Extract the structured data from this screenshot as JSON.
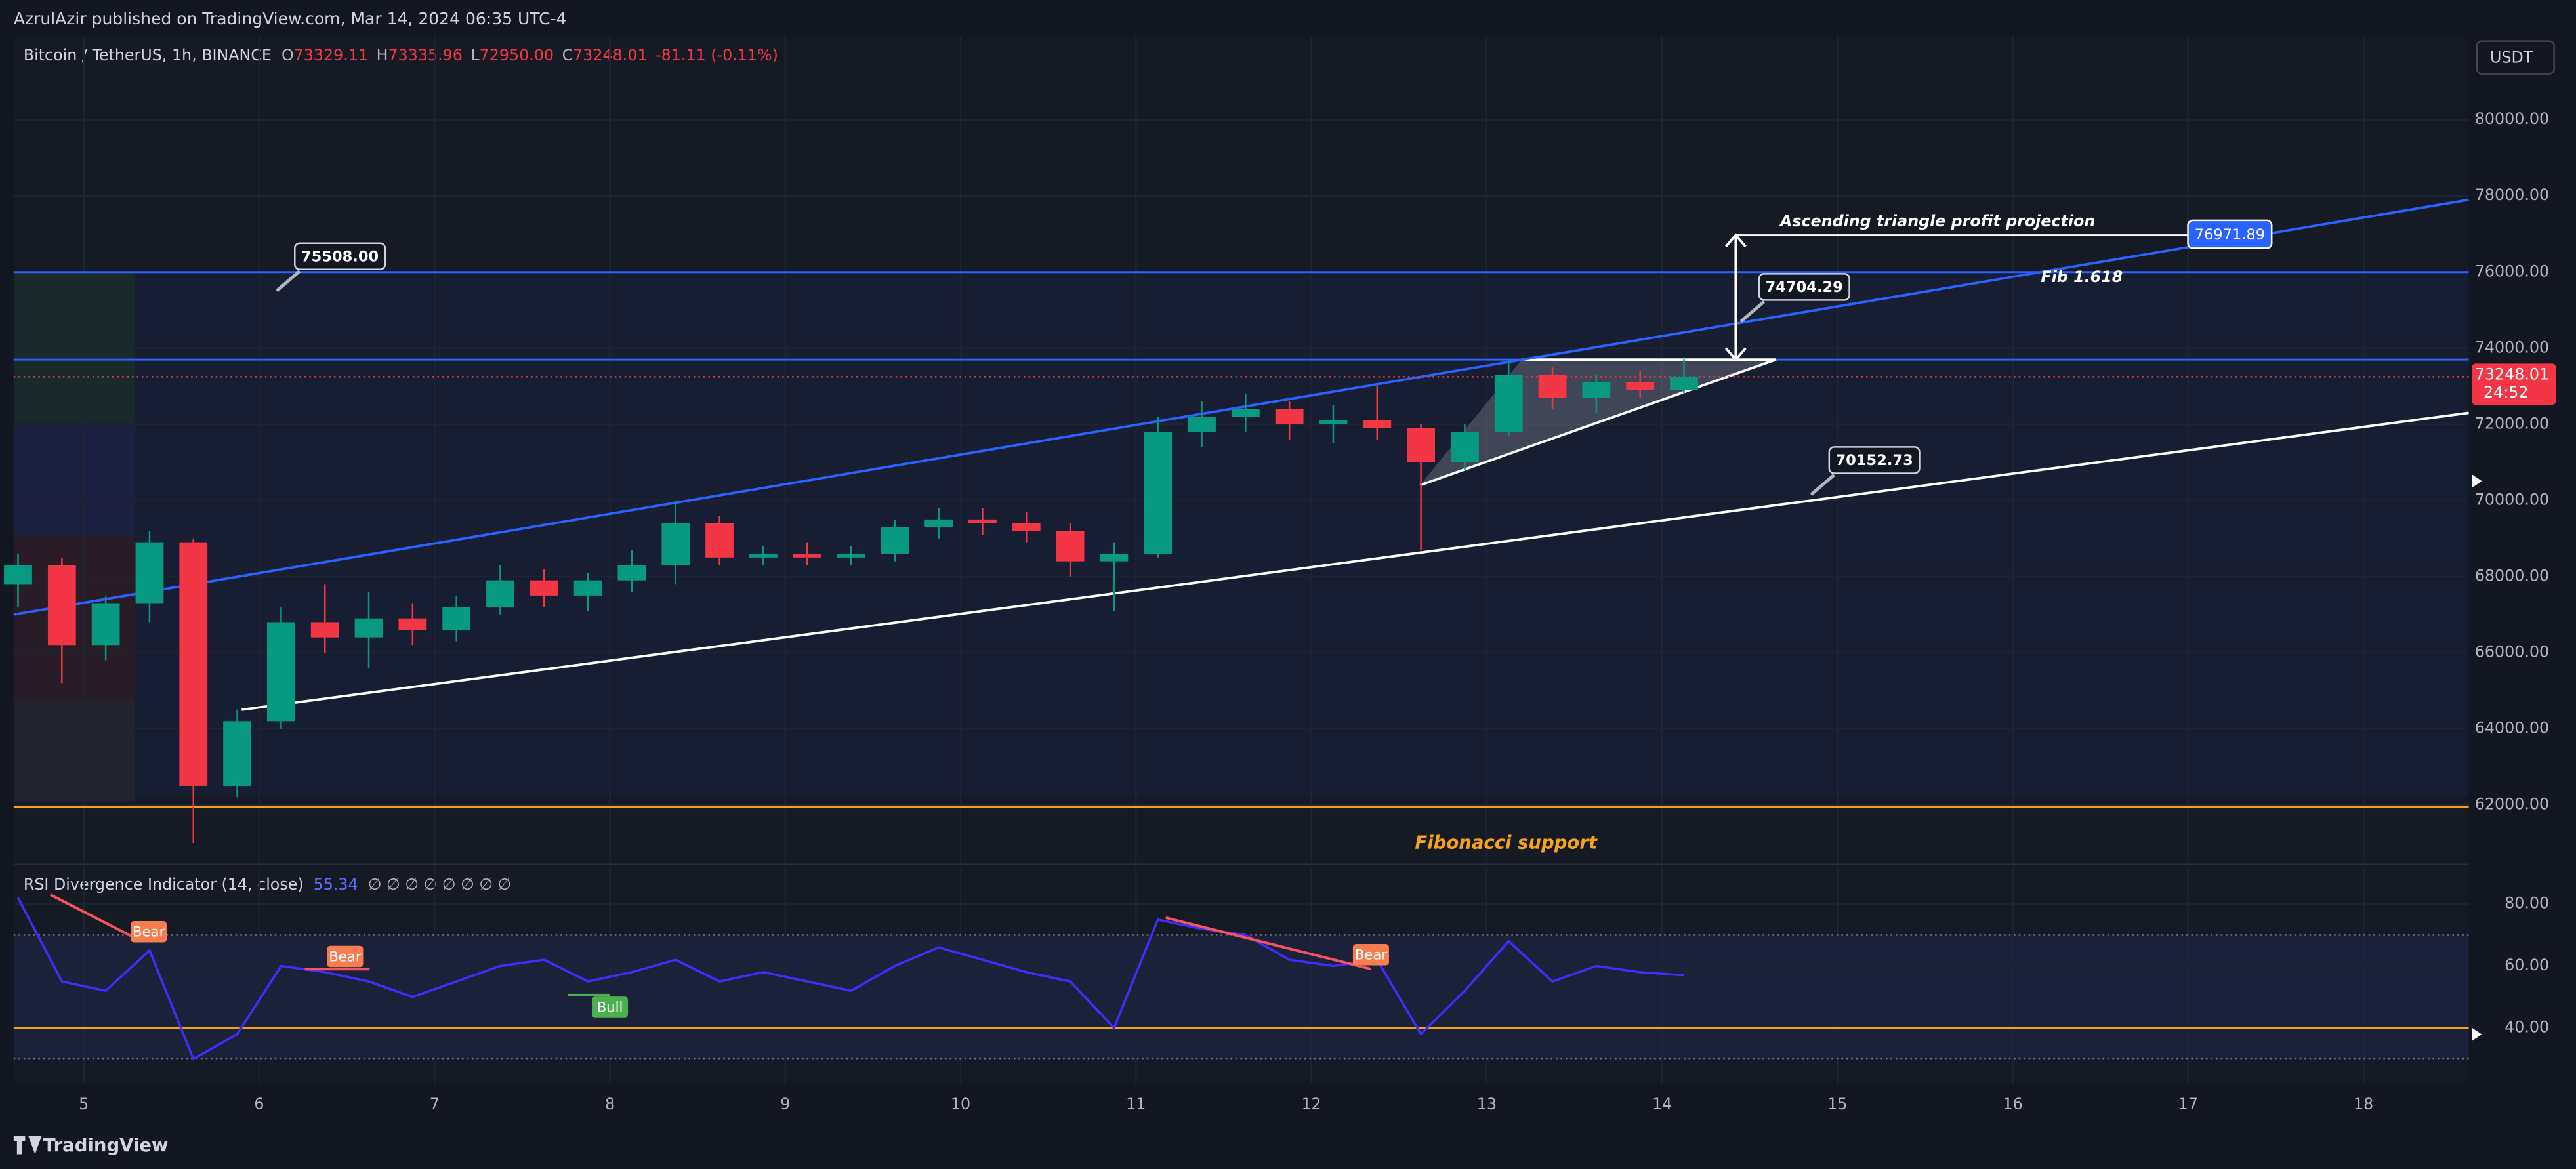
{
  "header": {
    "author_line": "AzrulAzir published on TradingView.com, Mar 14, 2024 06:35 UTC-4",
    "symbol": "Bitcoin / TetherUS, 1h, BINANCE",
    "ohlc": [
      {
        "key": "O",
        "value": "73329.11"
      },
      {
        "key": "H",
        "value": "73335.96"
      },
      {
        "key": "L",
        "value": "72950.00"
      },
      {
        "key": "C",
        "value": "73248.01"
      }
    ],
    "change": "-81.11 (-0.11%)",
    "currency": "USDT"
  },
  "footer": {
    "brand": "TradingView"
  },
  "chart_data": [
    {
      "type": "candlestick",
      "x": [
        4.625,
        4.875,
        5.125,
        5.375,
        5.625,
        5.875,
        6.125,
        6.375,
        6.625,
        6.875,
        7.125,
        7.375,
        7.625,
        7.875,
        8.125,
        8.375,
        8.625,
        8.875,
        9.125,
        9.375,
        9.625,
        9.875,
        10.125,
        10.375,
        10.625,
        10.875,
        11.125,
        11.375,
        11.625,
        11.875,
        12.125,
        12.375,
        12.625,
        12.875,
        13.125,
        13.375,
        13.625,
        13.875,
        14.125
      ],
      "open": [
        67800,
        68300,
        66200,
        67300,
        68900,
        62500,
        64200,
        66800,
        66400,
        66900,
        66600,
        67200,
        67900,
        67500,
        67900,
        68300,
        69400,
        68500,
        68600,
        68500,
        68600,
        69300,
        69500,
        69400,
        69200,
        68400,
        68600,
        71800,
        72200,
        72400,
        72000,
        72100,
        71900,
        71000,
        71800,
        73300,
        72700,
        73100,
        72900
      ],
      "high": [
        68600,
        68500,
        67500,
        69200,
        69000,
        64500,
        67200,
        67800,
        67600,
        67300,
        67500,
        68300,
        68200,
        68100,
        68700,
        70000,
        69600,
        68800,
        68900,
        68800,
        69500,
        69800,
        69800,
        69700,
        69400,
        68900,
        72200,
        72600,
        72800,
        72600,
        72500,
        73000,
        72000,
        72000,
        73700,
        73500,
        73300,
        73400,
        73700
      ],
      "low": [
        67200,
        65200,
        65800,
        66800,
        61000,
        62200,
        64000,
        66000,
        65600,
        66200,
        66300,
        67000,
        67200,
        67100,
        67600,
        67800,
        68300,
        68300,
        68300,
        68300,
        68400,
        69000,
        69100,
        68900,
        68000,
        67100,
        68500,
        71400,
        71800,
        71600,
        71500,
        71600,
        68700,
        70800,
        71700,
        72400,
        72300,
        72700,
        72800
      ],
      "close": [
        68300,
        66200,
        67300,
        68900,
        62500,
        64200,
        66800,
        66400,
        66900,
        66600,
        67200,
        67900,
        67500,
        67900,
        68300,
        69400,
        68500,
        68600,
        68500,
        68600,
        69300,
        69500,
        69400,
        69200,
        68400,
        68600,
        71800,
        72200,
        72400,
        72000,
        72100,
        71900,
        71000,
        71800,
        73300,
        72700,
        73100,
        72900,
        73248.01
      ],
      "up_color": "#089981",
      "down_color": "#f23645",
      "xlim": [
        4.6,
        18.6
      ],
      "xticks": [
        5,
        6,
        7,
        8,
        9,
        10,
        11,
        12,
        13,
        14,
        15,
        16,
        17,
        18
      ],
      "ylim": [
        60500,
        82200
      ],
      "yticks": [
        {
          "value": 62000,
          "label": "62000.00"
        },
        {
          "value": 64000,
          "label": "64000.00"
        },
        {
          "value": 66000,
          "label": "66000.00"
        },
        {
          "value": 68000,
          "label": "68000.00"
        },
        {
          "value": 70000,
          "label": "70000.00"
        },
        {
          "value": 72000,
          "label": "72000.00"
        },
        {
          "value": 74000,
          "label": "74000.00"
        },
        {
          "value": 76000,
          "label": "76000.00"
        },
        {
          "value": 78000,
          "label": "78000.00"
        },
        {
          "value": 80000,
          "label": "80000.00"
        }
      ],
      "grid": true,
      "hlines": [
        {
          "value": 76000,
          "color": "#2962ff"
        },
        {
          "value": 73700,
          "color": "#2962ff"
        },
        {
          "value": 61950,
          "color": "#f7a21b"
        }
      ],
      "trendlines": [
        {
          "color": "#2962ff",
          "points": [
            [
              4.6,
              67000
            ],
            [
              18.6,
              77900
            ]
          ]
        },
        {
          "color": "#ffffff",
          "points": [
            [
              5.9,
              64500
            ],
            [
              18.6,
              72300
            ]
          ]
        }
      ],
      "triangle": {
        "color": "#ffffff",
        "points": [
          [
            12.62,
            70400
          ],
          [
            13.2,
            73700
          ],
          [
            14.65,
            73700
          ]
        ]
      },
      "callouts": [
        {
          "value": 75508,
          "label": "75508.00",
          "x": 6.1
        },
        {
          "value": 74704.29,
          "label": "74704.29",
          "x": 14.45
        },
        {
          "value": 70152.73,
          "label": "70152.73",
          "x": 14.85
        }
      ],
      "projection": {
        "x": 14.42,
        "from": 73700,
        "to": 76971.89,
        "label": "76971.89",
        "title": "Ascending triangle profit projection",
        "color": "#2962ff"
      },
      "texts": [
        {
          "text": "Fib 1.618",
          "x": 16.16,
          "y": 75850,
          "color": "#ffffff"
        },
        {
          "text": "Fibonacci support",
          "x": 13.11,
          "y": 60990,
          "color": "#f7a21b"
        }
      ],
      "last_price": {
        "value": 73248.01,
        "label": "73248.01",
        "countdown": "24:52",
        "color": "#f23645"
      }
    },
    {
      "type": "line",
      "title": "RSI Divergence Indicator (14, close)",
      "value_label": "55.34",
      "symbols": "∅ ∅ ∅ ∅ ∅ ∅ ∅ ∅",
      "color": "#3f2dff",
      "x": [
        4.625,
        4.875,
        5.125,
        5.375,
        5.625,
        5.875,
        6.125,
        6.375,
        6.625,
        6.875,
        7.125,
        7.375,
        7.625,
        7.875,
        8.125,
        8.375,
        8.625,
        8.875,
        9.125,
        9.375,
        9.625,
        9.875,
        10.125,
        10.375,
        10.625,
        10.875,
        11.125,
        11.375,
        11.625,
        11.875,
        12.125,
        12.375,
        12.625,
        12.875,
        13.125,
        13.375,
        13.625,
        13.875,
        14.125
      ],
      "values": [
        82,
        55,
        52,
        65,
        30,
        38,
        60,
        58,
        55,
        50,
        55,
        60,
        62,
        55,
        58,
        62,
        55,
        58,
        55,
        52,
        60,
        66,
        62,
        58,
        55,
        40,
        75,
        72,
        70,
        62,
        60,
        62,
        38,
        52,
        68,
        55,
        60,
        58,
        57
      ],
      "ylim": [
        22,
        92
      ],
      "yticks": [
        {
          "value": 40,
          "label": "40.00"
        },
        {
          "value": 60,
          "label": "60.00"
        },
        {
          "value": 80,
          "label": "80.00"
        }
      ],
      "band": [
        30,
        70
      ],
      "level": {
        "value": 40,
        "color": "#f7a21b"
      },
      "divergences": [
        {
          "label": "Bear",
          "color": "#f7525f",
          "box_color": "#f77c50",
          "points": [
            [
              4.81,
              83
            ],
            [
              5.27,
              69.7
            ]
          ],
          "at": [
            5.37,
            70.8
          ]
        },
        {
          "label": "Bear",
          "color": "#f7525f",
          "box_color": "#f77c50",
          "points": [
            [
              6.26,
              59
            ],
            [
              6.63,
              59
            ]
          ],
          "at": [
            6.49,
            62.8
          ]
        },
        {
          "label": "Bull",
          "color": "#4caf50",
          "box_color": "#4caf50",
          "points": [
            [
              7.76,
              50.6
            ],
            [
              8.0,
              50.6
            ]
          ],
          "at": [
            8.0,
            46.4
          ]
        },
        {
          "label": "Bear",
          "color": "#f7525f",
          "box_color": "#f77c50",
          "points": [
            [
              11.17,
              75.6
            ],
            [
              12.34,
              59
            ]
          ],
          "at": [
            12.34,
            63.4
          ]
        }
      ]
    }
  ]
}
